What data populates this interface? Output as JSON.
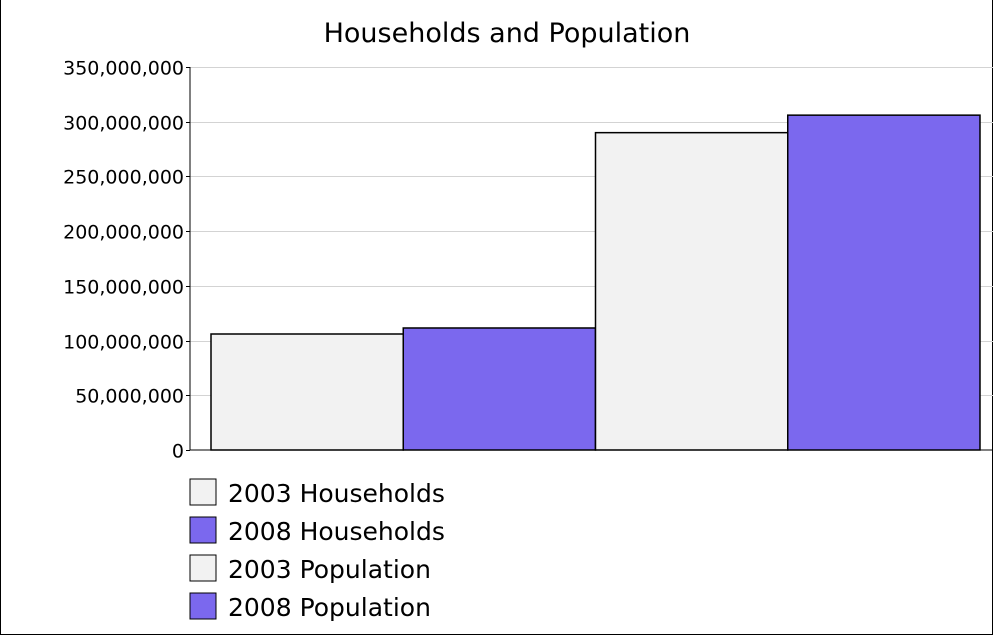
{
  "chart_data": {
    "type": "bar",
    "title": "Households and Population",
    "xlabel": "",
    "ylabel": "",
    "ylim": [
      0,
      350000000
    ],
    "yticks": [
      {
        "value": 0,
        "label": "0"
      },
      {
        "value": 50000000,
        "label": "50,000,000"
      },
      {
        "value": 100000000,
        "label": "100,000,000"
      },
      {
        "value": 150000000,
        "label": "150,000,000"
      },
      {
        "value": 200000000,
        "label": "200,000,000"
      },
      {
        "value": 250000000,
        "label": "250,000,000"
      },
      {
        "value": 300000000,
        "label": "300,000,000"
      },
      {
        "value": 350000000,
        "label": "350,000,000"
      }
    ],
    "grid": true,
    "legend_position": "bottom",
    "series": [
      {
        "name": "2003 Households",
        "value": 106000000,
        "color": "#f2f2f2"
      },
      {
        "name": "2008 Households",
        "value": 111500000,
        "color": "#7b68ee"
      },
      {
        "name": "2003 Population",
        "value": 290000000,
        "color": "#f2f2f2"
      },
      {
        "name": "2008 Population",
        "value": 306000000,
        "color": "#7b68ee"
      }
    ]
  }
}
